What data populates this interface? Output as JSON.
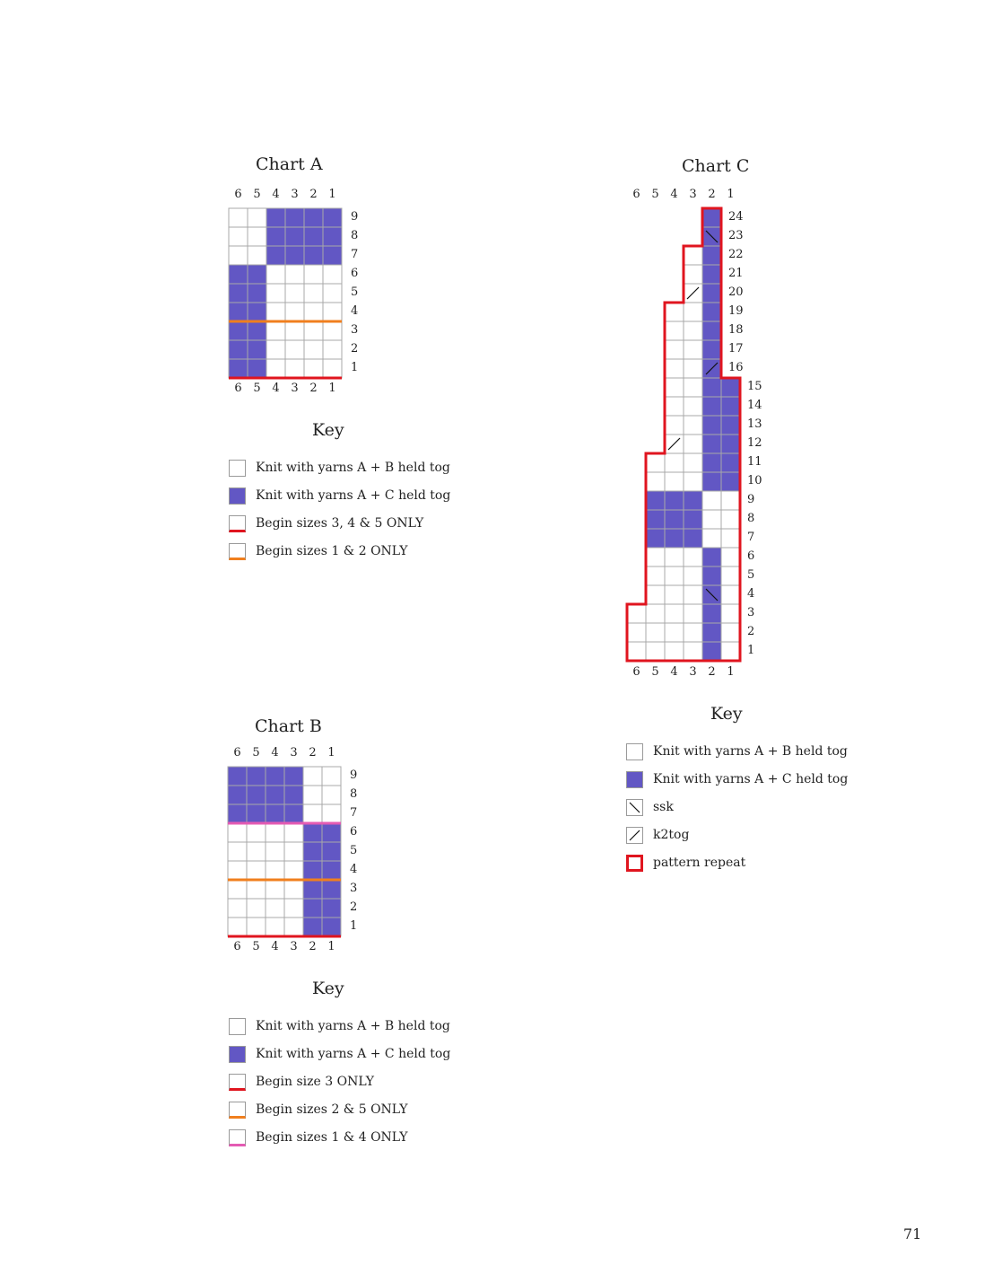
{
  "colors": {
    "fill": "#6257c4",
    "grid": "#a8a8a8",
    "red": "#e0151f",
    "orange": "#f07f1e",
    "pink": "#e45bb3"
  },
  "chartA": {
    "title": "Chart A",
    "cols": [
      "6",
      "5",
      "4",
      "3",
      "2",
      "1"
    ],
    "rows": [
      "9",
      "8",
      "7",
      "6",
      "5",
      "4",
      "3",
      "2",
      "1"
    ],
    "key_title": "Key",
    "key": [
      {
        "label": "Knit with yarns A + B held tog",
        "swatch": "white"
      },
      {
        "label": "Knit with yarns A + C held tog",
        "swatch": "fill"
      },
      {
        "label": "Begin sizes 3, 4 & 5 ONLY",
        "swatch": "red-line"
      },
      {
        "label": "Begin sizes 1 & 2 ONLY",
        "swatch": "orange-line"
      }
    ]
  },
  "chartB": {
    "title": "Chart B",
    "cols": [
      "6",
      "5",
      "4",
      "3",
      "2",
      "1"
    ],
    "rows": [
      "9",
      "8",
      "7",
      "6",
      "5",
      "4",
      "3",
      "2",
      "1"
    ],
    "key_title": "Key",
    "key": [
      {
        "label": "Knit with yarns A + B held tog",
        "swatch": "white"
      },
      {
        "label": "Knit with yarns A + C held tog",
        "swatch": "fill"
      },
      {
        "label": "Begin size 3 ONLY",
        "swatch": "red-line"
      },
      {
        "label": "Begin sizes 2 & 5 ONLY",
        "swatch": "orange-line"
      },
      {
        "label": "Begin sizes 1 & 4 ONLY",
        "swatch": "pink-line"
      }
    ]
  },
  "chartC": {
    "title": "Chart C",
    "cols": [
      "6",
      "5",
      "4",
      "3",
      "2",
      "1"
    ],
    "rows": [
      "24",
      "23",
      "22",
      "21",
      "20",
      "19",
      "18",
      "17",
      "16",
      "15",
      "14",
      "13",
      "12",
      "11",
      "10",
      "9",
      "8",
      "7",
      "6",
      "5",
      "4",
      "3",
      "2",
      "1"
    ],
    "key_title": "Key",
    "key": [
      {
        "label": "Knit with yarns A + B held tog",
        "swatch": "white"
      },
      {
        "label": "Knit with yarns A + C held tog",
        "swatch": "fill"
      },
      {
        "label": "ssk",
        "swatch": "ssk"
      },
      {
        "label": "k2tog",
        "swatch": "k2tog"
      },
      {
        "label": "pattern repeat",
        "swatch": "repeat"
      }
    ]
  },
  "page_number": "71"
}
